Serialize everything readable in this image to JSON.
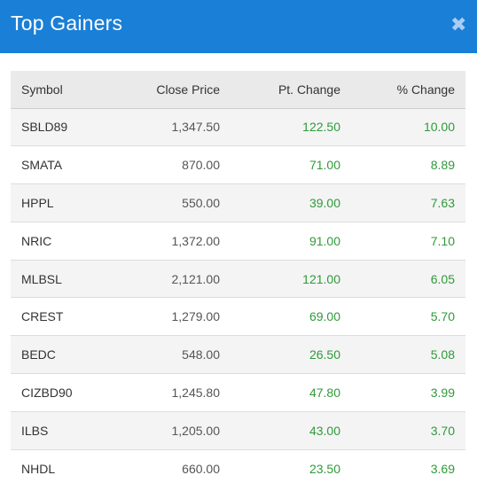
{
  "header": {
    "title": "Top Gainers",
    "close_glyph": "✖"
  },
  "colors": {
    "header_bg": "#1a7fd6",
    "positive": "#2f9a3a"
  },
  "table": {
    "columns": [
      "Symbol",
      "Close Price",
      "Pt. Change",
      "% Change"
    ],
    "rows": [
      {
        "symbol": "SBLD89",
        "close": "1,347.50",
        "pt": "122.50",
        "pct": "10.00"
      },
      {
        "symbol": "SMATA",
        "close": "870.00",
        "pt": "71.00",
        "pct": "8.89"
      },
      {
        "symbol": "HPPL",
        "close": "550.00",
        "pt": "39.00",
        "pct": "7.63"
      },
      {
        "symbol": "NRIC",
        "close": "1,372.00",
        "pt": "91.00",
        "pct": "7.10"
      },
      {
        "symbol": "MLBSL",
        "close": "2,121.00",
        "pt": "121.00",
        "pct": "6.05"
      },
      {
        "symbol": "CREST",
        "close": "1,279.00",
        "pt": "69.00",
        "pct": "5.70"
      },
      {
        "symbol": "BEDC",
        "close": "548.00",
        "pt": "26.50",
        "pct": "5.08"
      },
      {
        "symbol": "CIZBD90",
        "close": "1,245.80",
        "pt": "47.80",
        "pct": "3.99"
      },
      {
        "symbol": "ILBS",
        "close": "1,205.00",
        "pt": "43.00",
        "pct": "3.70"
      },
      {
        "symbol": "NHDL",
        "close": "660.00",
        "pt": "23.50",
        "pct": "3.69"
      }
    ]
  }
}
